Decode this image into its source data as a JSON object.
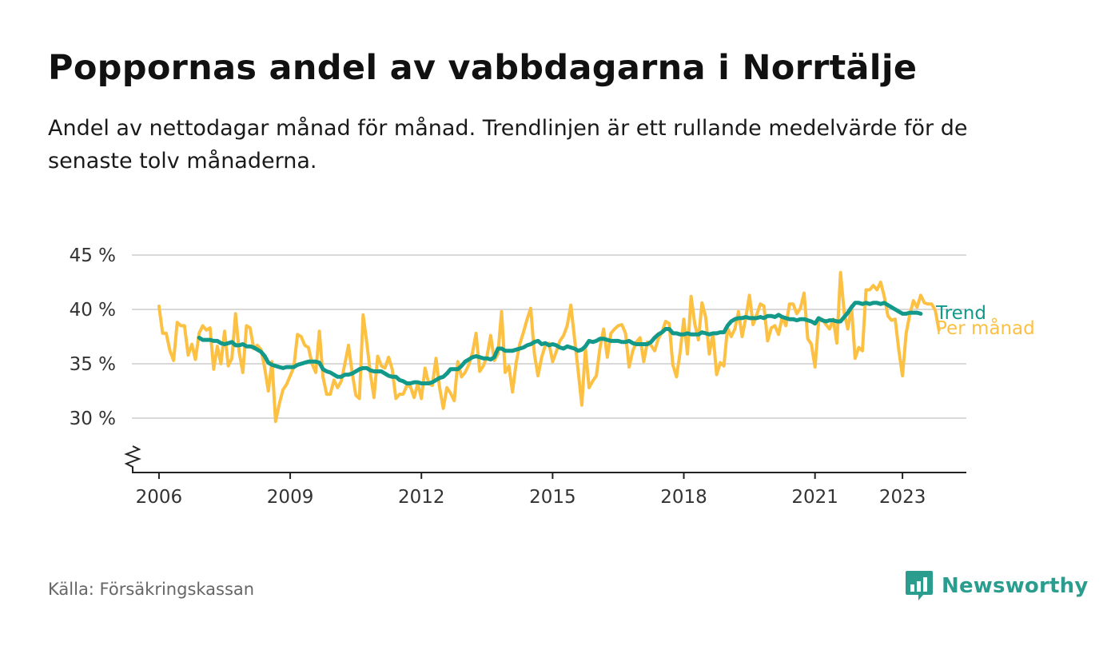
{
  "title": "Poppornas andel av vabbdagarna i Norrtälje",
  "subtitle": "Andel av nettodagar månad för månad. Trendlinjen är ett rullande medelvärde för de senaste tolv månaderna.",
  "source": "Källa: Försäkringskassan",
  "brand": {
    "name": "Newsworthy",
    "icon": "newsworthy-logo-icon"
  },
  "colors": {
    "monthly": "#fcc043",
    "trend": "#13998a",
    "brand": "#2a9d8f",
    "grid": "#d9d9d9",
    "axis": "#222222"
  },
  "chart_data": {
    "type": "line",
    "title": "Poppornas andel av vabbdagarna i Norrtälje",
    "xlabel": "",
    "ylabel": "",
    "xlim": [
      2005.38,
      2024.46
    ],
    "ylim": [
      25,
      45
    ],
    "y_ticks": [
      30,
      35,
      40,
      45
    ],
    "y_tick_labels": [
      "30 %",
      "35 %",
      "40 %",
      "45 %"
    ],
    "x_ticks": [
      2006,
      2009,
      2012,
      2015,
      2018,
      2021,
      2023
    ],
    "x_tick_labels": [
      "2006",
      "2009",
      "2012",
      "2015",
      "2018",
      "2021",
      "2023"
    ],
    "axis_break": true,
    "grid": "horizontal",
    "legend": "direct labels at line ends",
    "x_start": 2006.0,
    "x_step": 0.0833333,
    "series": [
      {
        "name": "Per månad",
        "color": "#fcc043",
        "values": [
          40.3,
          37.8,
          37.8,
          36.2,
          35.3,
          38.8,
          38.5,
          38.5,
          35.8,
          36.8,
          35.4,
          37.8,
          38.5,
          38.1,
          38.3,
          34.5,
          36.6,
          35.0,
          38.0,
          34.8,
          35.5,
          39.6,
          36.1,
          34.2,
          38.5,
          38.3,
          36.4,
          36.7,
          36.3,
          34.6,
          32.5,
          35.2,
          29.7,
          31.3,
          32.6,
          33.1,
          33.9,
          34.7,
          37.7,
          37.5,
          36.7,
          36.5,
          35.0,
          34.2,
          38.0,
          33.8,
          32.2,
          32.2,
          33.5,
          32.8,
          33.4,
          35.0,
          36.7,
          34.2,
          32.1,
          31.8,
          39.5,
          37.0,
          34.1,
          31.9,
          35.7,
          34.8,
          34.6,
          35.6,
          34.5,
          31.8,
          32.2,
          32.2,
          33.0,
          32.9,
          31.9,
          33.2,
          31.8,
          34.6,
          33.2,
          33.0,
          35.5,
          32.8,
          30.9,
          32.8,
          32.3,
          31.6,
          35.2,
          33.8,
          34.2,
          34.9,
          36.0,
          37.8,
          34.3,
          34.8,
          35.7,
          37.6,
          35.3,
          35.9,
          39.8,
          34.2,
          34.8,
          32.4,
          35.1,
          36.8,
          37.9,
          39.1,
          40.1,
          35.9,
          33.9,
          35.6,
          36.7,
          36.9,
          35.2,
          36.1,
          37.1,
          37.6,
          38.5,
          40.4,
          37.4,
          34.4,
          31.2,
          36.4,
          32.8,
          33.4,
          33.9,
          36.5,
          38.2,
          35.6,
          37.8,
          38.2,
          38.5,
          38.6,
          37.8,
          34.7,
          36.2,
          37.0,
          37.4,
          35.2,
          37.0,
          36.7,
          36.2,
          37.3,
          37.9,
          38.9,
          38.7,
          34.9,
          33.8,
          36.1,
          39.1,
          35.9,
          41.2,
          38.7,
          37.2,
          40.6,
          39.3,
          35.9,
          37.8,
          34.0,
          35.1,
          34.8,
          38.3,
          37.5,
          38.2,
          39.8,
          37.5,
          39.2,
          41.3,
          38.6,
          39.5,
          40.5,
          40.3,
          37.1,
          38.3,
          38.5,
          37.7,
          39.3,
          38.5,
          40.5,
          40.5,
          39.6,
          40.1,
          41.5,
          37.3,
          36.8,
          34.7,
          38.9,
          39.1,
          38.6,
          38.2,
          39.1,
          36.9,
          43.4,
          39.7,
          38.2,
          40.3,
          35.5,
          36.5,
          36.2,
          41.8,
          41.8,
          42.2,
          41.8,
          42.5,
          41.2,
          39.4,
          39.0,
          39.1,
          36.2,
          33.9,
          37.8,
          39.5,
          40.8,
          40.2,
          41.3,
          40.6,
          40.5,
          40.5,
          39.9,
          38.1
        ]
      },
      {
        "name": "Trend",
        "color": "#13998a",
        "x_start": 2006.9167,
        "values": [
          37.4,
          37.2,
          37.2,
          37.2,
          37.1,
          37.1,
          36.9,
          36.8,
          36.9,
          37.0,
          36.7,
          36.7,
          36.8,
          36.6,
          36.6,
          36.5,
          36.3,
          36.1,
          35.7,
          35.1,
          34.9,
          34.8,
          34.7,
          34.6,
          34.7,
          34.7,
          34.7,
          34.9,
          35.0,
          35.1,
          35.2,
          35.2,
          35.2,
          35.1,
          34.5,
          34.3,
          34.2,
          34.0,
          33.8,
          33.8,
          34.0,
          34.0,
          34.1,
          34.3,
          34.5,
          34.6,
          34.6,
          34.4,
          34.3,
          34.3,
          34.3,
          34.1,
          33.9,
          33.8,
          33.8,
          33.5,
          33.4,
          33.2,
          33.2,
          33.3,
          33.3,
          33.2,
          33.2,
          33.2,
          33.3,
          33.5,
          33.7,
          33.8,
          34.1,
          34.5,
          34.5,
          34.5,
          34.8,
          35.2,
          35.4,
          35.6,
          35.7,
          35.6,
          35.5,
          35.5,
          35.4,
          35.6,
          36.4,
          36.4,
          36.2,
          36.2,
          36.2,
          36.3,
          36.4,
          36.5,
          36.7,
          36.8,
          37.0,
          37.1,
          36.8,
          36.9,
          36.7,
          36.8,
          36.7,
          36.5,
          36.4,
          36.6,
          36.5,
          36.4,
          36.2,
          36.3,
          36.6,
          37.1,
          37.0,
          37.1,
          37.3,
          37.3,
          37.2,
          37.1,
          37.1,
          37.1,
          37.0,
          37.0,
          37.1,
          36.9,
          36.8,
          36.8,
          36.8,
          36.8,
          37.0,
          37.4,
          37.7,
          37.9,
          38.2,
          38.2,
          37.8,
          37.8,
          37.7,
          37.7,
          37.8,
          37.7,
          37.7,
          37.7,
          37.9,
          37.8,
          37.7,
          37.8,
          37.8,
          37.9,
          37.9,
          38.5,
          38.9,
          39.1,
          39.2,
          39.2,
          39.3,
          39.2,
          39.2,
          39.2,
          39.3,
          39.2,
          39.4,
          39.4,
          39.3,
          39.5,
          39.3,
          39.2,
          39.1,
          39.1,
          39.0,
          39.1,
          39.1,
          39.0,
          38.9,
          38.7,
          39.2,
          39.0,
          38.9,
          39.0,
          39.0,
          38.9,
          38.9,
          39.3,
          39.7,
          40.2,
          40.6,
          40.6,
          40.5,
          40.6,
          40.5,
          40.6,
          40.6,
          40.5,
          40.6,
          40.4,
          40.2,
          40.0,
          39.8,
          39.6,
          39.6,
          39.7,
          39.7,
          39.7,
          39.6
        ]
      }
    ]
  }
}
